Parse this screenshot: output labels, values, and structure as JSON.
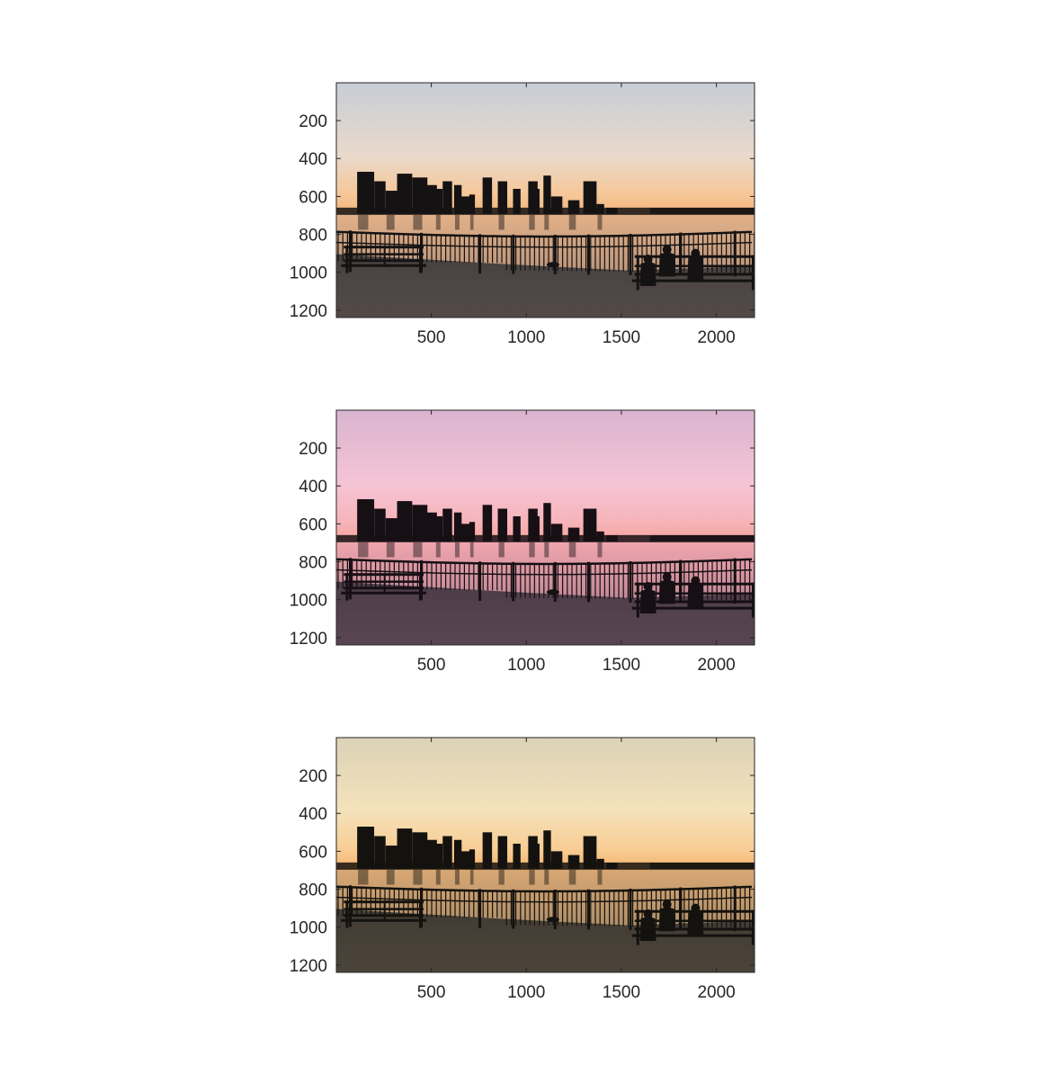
{
  "figure": {
    "panels": [
      {
        "variant": "original",
        "palette": {
          "sky_top": "#c7cdd6",
          "sky_mid": "#e9d9cc",
          "sky_low": "#f6c797",
          "horizon": "#f1b37a",
          "water_top": "#e2b189",
          "water_bottom": "#9e8172",
          "ground": "#454040",
          "silhouette": "#141212"
        },
        "x_axis": {
          "ticks": [
            500,
            1000,
            1500,
            2000
          ]
        },
        "y_axis": {
          "ticks": [
            200,
            400,
            600,
            800,
            1000,
            1200
          ]
        }
      },
      {
        "variant": "pink-tint",
        "palette": {
          "sky_top": "#d9b4cf",
          "sky_mid": "#f5c4d6",
          "sky_low": "#f7b4b9",
          "horizon": "#f5a39c",
          "water_top": "#f1a6ae",
          "water_bottom": "#9c7283",
          "ground": "#4b3c48",
          "silhouette": "#160f14"
        },
        "x_axis": {
          "ticks": [
            500,
            1000,
            1500,
            2000
          ]
        },
        "y_axis": {
          "ticks": [
            200,
            400,
            600,
            800,
            1000,
            1200
          ]
        }
      },
      {
        "variant": "warm-tint",
        "palette": {
          "sky_top": "#dcd2b7",
          "sky_mid": "#f4e2bb",
          "sky_low": "#f8cd93",
          "horizon": "#f2b36f",
          "water_top": "#d9a873",
          "water_bottom": "#8d7a62",
          "ground": "#3f3a33",
          "silhouette": "#14120e"
        },
        "x_axis": {
          "ticks": [
            500,
            1000,
            1500,
            2000
          ]
        },
        "y_axis": {
          "ticks": [
            200,
            400,
            600,
            800,
            1000,
            1200
          ]
        }
      }
    ],
    "image_extent": {
      "x": [
        1,
        2200
      ],
      "y": [
        1,
        1238
      ]
    }
  }
}
